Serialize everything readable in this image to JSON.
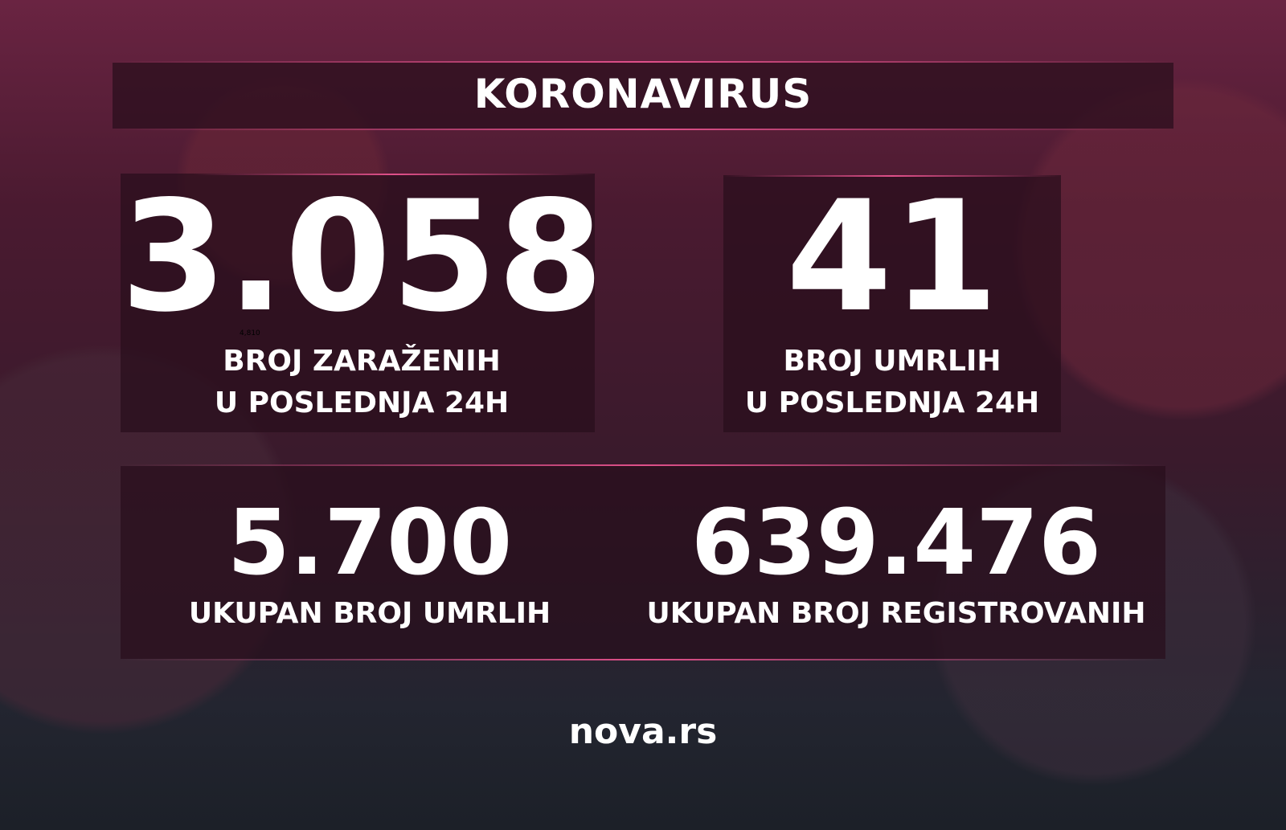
{
  "header": {
    "title": "KORONAVIRUS"
  },
  "stats": {
    "new_cases": {
      "value": "3.058",
      "label_line1": "BROJ ZARAŽENIH",
      "label_line2": "U POSLEDNJA 24H",
      "note": "4,810"
    },
    "new_deaths": {
      "value": "41",
      "label_line1": "BROJ UMRLIH",
      "label_line2": "U POSLEDNJA 24H"
    },
    "total_deaths": {
      "value": "5.700",
      "label": "UKUPAN BROJ UMRLIH"
    },
    "total_cases": {
      "value": "639.476",
      "label": "UKUPAN BROJ REGISTROVANIH"
    }
  },
  "footer": {
    "logo": "nova.rs"
  },
  "colors": {
    "accent": "#e0508a",
    "background": "#4a1a30"
  }
}
